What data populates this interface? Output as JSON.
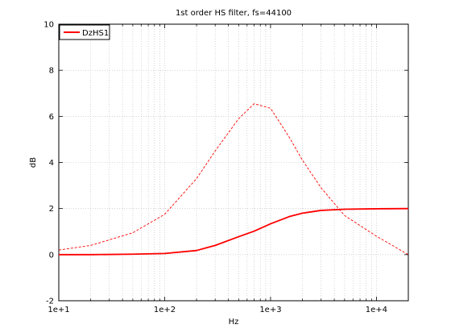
{
  "chart_data": {
    "type": "line",
    "title": "1st order HS filter, fs=44100",
    "xlabel": "Hz",
    "ylabel": "dB",
    "x_scale": "log",
    "xlim": [
      10,
      20000
    ],
    "ylim": [
      -2,
      10
    ],
    "x_ticks": [
      10,
      100,
      1000,
      10000
    ],
    "x_tick_labels": [
      "1e+1",
      "1e+2",
      "1e+3",
      "1e+4"
    ],
    "y_ticks": [
      -2,
      0,
      2,
      4,
      6,
      8,
      10
    ],
    "y_tick_labels": [
      "-2",
      "0",
      "2",
      "4",
      "6",
      "8",
      "10"
    ],
    "grid": true,
    "legend_position": "top-left",
    "series": [
      {
        "name": "DzHS1",
        "style": "solid",
        "color": "#ff0000",
        "x": [
          10,
          20,
          50,
          100,
          200,
          300,
          500,
          700,
          1000,
          1500,
          2000,
          3000,
          5000,
          10000,
          20000
        ],
        "y": [
          0.0,
          0.0,
          0.02,
          0.05,
          0.18,
          0.4,
          0.78,
          1.02,
          1.34,
          1.65,
          1.8,
          1.92,
          1.97,
          1.99,
          2.0
        ]
      },
      {
        "style": "dashed",
        "color": "#ff0000",
        "x": [
          10,
          20,
          50,
          100,
          200,
          300,
          500,
          700,
          1000,
          1500,
          2000,
          3000,
          5000,
          10000,
          20000
        ],
        "y": [
          0.2,
          0.4,
          0.95,
          1.75,
          3.3,
          4.5,
          5.9,
          6.55,
          6.35,
          5.1,
          4.1,
          2.9,
          1.7,
          0.8,
          0.0
        ]
      }
    ]
  }
}
